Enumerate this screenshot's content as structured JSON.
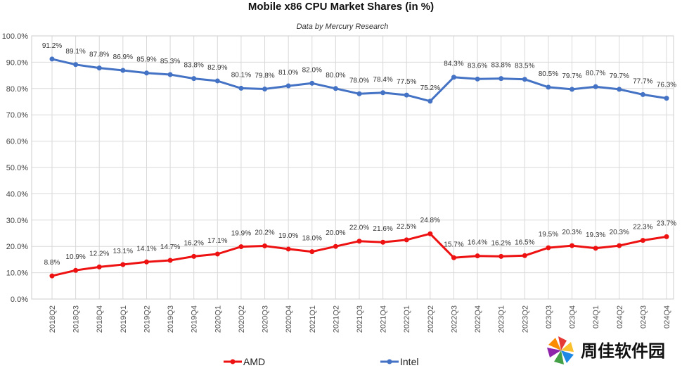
{
  "chart_data": {
    "type": "line",
    "title": "Mobile x86 CPU Market Shares (in %)",
    "subtitle": "Data by Mercury Research",
    "xlabel": "",
    "ylabel": "",
    "ylim": [
      0,
      100
    ],
    "yticks": [
      "0.0%",
      "10.0%",
      "20.0%",
      "30.0%",
      "40.0%",
      "50.0%",
      "60.0%",
      "70.0%",
      "80.0%",
      "90.0%",
      "100.0%"
    ],
    "grid": true,
    "legend_position": "bottom",
    "categories": [
      "2018Q2",
      "2018Q3",
      "2018Q4",
      "2019Q1",
      "2019Q2",
      "2019Q3",
      "2019Q4",
      "2020Q1",
      "2020Q2",
      "2020Q3",
      "2020Q4",
      "2021Q1",
      "2021Q2",
      "2021Q3",
      "2021Q4",
      "2022Q1",
      "2022Q2",
      "2022Q3",
      "2022Q4",
      "2023Q1",
      "2023Q2",
      "023Q3",
      "023Q4",
      "024Q1",
      "024Q2",
      "024Q3",
      "024Q4"
    ],
    "series": [
      {
        "name": "AMD",
        "color": "#ee1111",
        "values": [
          8.8,
          10.9,
          12.2,
          13.1,
          14.1,
          14.7,
          16.2,
          17.1,
          19.9,
          20.2,
          19.0,
          18.0,
          20.0,
          22.0,
          21.6,
          22.5,
          24.8,
          15.7,
          16.4,
          16.2,
          16.5,
          19.5,
          20.3,
          19.3,
          20.3,
          22.3,
          23.7
        ],
        "labels": [
          "8.8%",
          "10.9%",
          "12.2%",
          "13.1%",
          "14.1%",
          "14.7%",
          "16.2%",
          "17.1%",
          "19.9%",
          "20.2%",
          "19.0%",
          "18.0%",
          "20.0%",
          "22.0%",
          "21.6%",
          "22.5%",
          "24.8%",
          "15.7%",
          "16.4%",
          "16.2%",
          "16.5%",
          "19.5%",
          "20.3%",
          "19.3%",
          "20.3%",
          "22.3%",
          "23.7%"
        ]
      },
      {
        "name": "Intel",
        "color": "#4472c4",
        "values": [
          91.2,
          89.1,
          87.8,
          86.9,
          85.9,
          85.3,
          83.8,
          82.9,
          80.1,
          79.8,
          81.0,
          82.0,
          80.0,
          78.0,
          78.4,
          77.5,
          75.2,
          84.3,
          83.6,
          83.8,
          83.5,
          80.5,
          79.7,
          80.7,
          79.7,
          77.7,
          76.3
        ],
        "labels": [
          "91.2%",
          "89.1%",
          "87.8%",
          "86.9%",
          "85.9%",
          "85.3%",
          "83.8%",
          "82.9%",
          "80.1%",
          "79.8%",
          "81.0%",
          "82.0%",
          "80.0%",
          "78.0%",
          "78.4%",
          "77.5%",
          "75.2%",
          "84.3%",
          "83.6%",
          "83.8%",
          "83.5%",
          "80.5%",
          "79.7%",
          "80.7%",
          "79.7%",
          "77.7%",
          "76.3%"
        ]
      }
    ]
  },
  "watermark": {
    "text": "周佳软件园",
    "icon": "pinwheel-logo-icon"
  }
}
